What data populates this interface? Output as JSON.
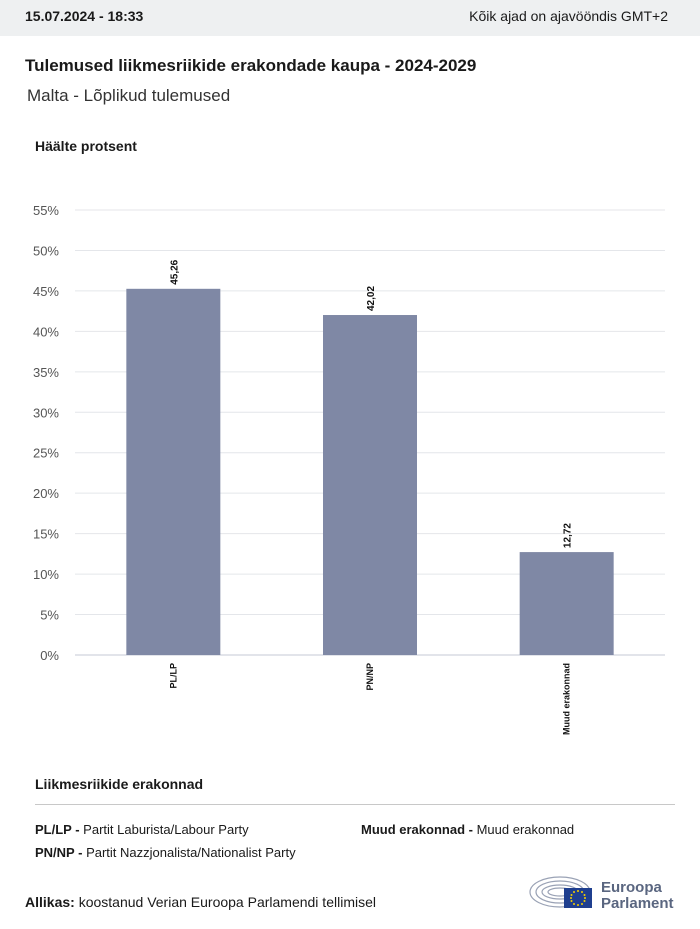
{
  "header": {
    "datetime": "15.07.2024 - 18:33",
    "timezone_note": "Kõik ajad on ajavööndis GMT+2"
  },
  "title": "Tulemused liikmesriikide erakondade kaupa - 2024-2029",
  "subtitle": "Malta - Lõplikud tulemused",
  "chart_data": {
    "type": "bar",
    "ylabel": "Häälte protsent",
    "categories": [
      "PL/LP",
      "PN/NP",
      "Muud erakonnad"
    ],
    "values": [
      45.26,
      42.02,
      12.72
    ],
    "value_labels": [
      "45,26",
      "42,02",
      "12,72"
    ],
    "ylim": [
      0,
      55
    ],
    "yticks": [
      "0%",
      "5%",
      "10%",
      "15%",
      "20%",
      "25%",
      "30%",
      "35%",
      "40%",
      "45%",
      "50%",
      "55%"
    ],
    "bar_color": "#7f88a5",
    "grid": true
  },
  "legend": {
    "title": "Liikmesriikide erakonnad",
    "items": [
      {
        "abbr": "PL/LP -",
        "name": "Partit Laburista/Labour Party"
      },
      {
        "abbr": "PN/NP -",
        "name": "Partit Nazzjonalista/Nationalist Party"
      },
      {
        "abbr": "Muud erakonnad -",
        "name": "Muud erakonnad"
      }
    ]
  },
  "source": {
    "label": "Allikas:",
    "text": "koostanud Verian Euroopa Parlamendi tellimisel"
  },
  "logo": {
    "line1": "Euroopa",
    "line2": "Parlament",
    "icon": "european-parliament-logo-icon"
  }
}
